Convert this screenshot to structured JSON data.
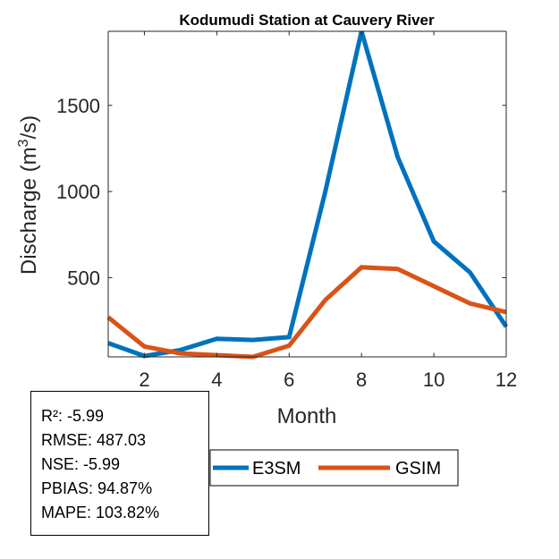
{
  "chart_data": {
    "type": "line",
    "title": "Kodumudi  Station at  Cauvery  River",
    "xlabel": "Month",
    "ylabel": "Discharge (m",
    "ylabel_superscript": "3",
    "ylabel_suffix": "/s)",
    "xlim": [
      1,
      12
    ],
    "ylim": [
      40,
      1930
    ],
    "xticks": [
      2,
      4,
      6,
      8,
      10,
      12
    ],
    "yticks": [
      500,
      1000,
      1500
    ],
    "x": [
      1,
      2,
      3,
      4,
      5,
      6,
      7,
      8,
      9,
      10,
      11,
      12
    ],
    "series": [
      {
        "name": "E3SM",
        "color": "#0072BD",
        "values": [
          120,
          45,
          80,
          145,
          138,
          155,
          1000,
          1930,
          1200,
          710,
          530,
          215
        ]
      },
      {
        "name": "GSIM",
        "color": "#D95319",
        "values": [
          270,
          100,
          60,
          50,
          40,
          105,
          370,
          560,
          550,
          450,
          350,
          300
        ]
      }
    ],
    "legend_position": "bottom",
    "grid": false
  },
  "stats": {
    "r2": "R²: -5.99",
    "rmse": "RMSE: 487.03",
    "nse": "NSE: -5.99",
    "pbias": "PBIAS: 94.87%",
    "mape": "MAPE: 103.82%"
  }
}
